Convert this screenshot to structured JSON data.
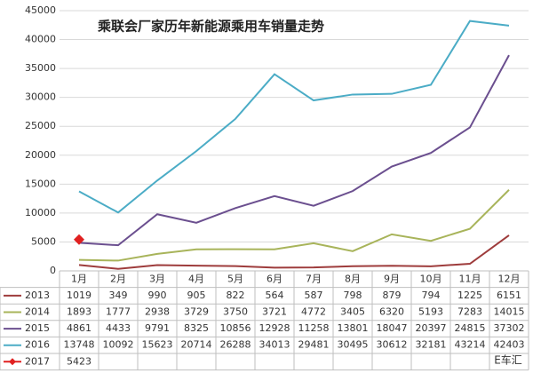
{
  "chart_data": {
    "type": "line",
    "title": "乘联会厂家历年新能源乘用车销量走势",
    "categories": [
      "1月",
      "2月",
      "3月",
      "4月",
      "5月",
      "6月",
      "7月",
      "8月",
      "9月",
      "10月",
      "11月",
      "12月"
    ],
    "series": [
      {
        "name": "2013",
        "color": "#9e3c3c",
        "values": [
          1019,
          349,
          990,
          905,
          822,
          564,
          587,
          798,
          879,
          794,
          1225,
          6151
        ]
      },
      {
        "name": "2014",
        "color": "#a8b45a",
        "values": [
          1893,
          1777,
          2938,
          3729,
          3750,
          3721,
          4772,
          3405,
          6320,
          5193,
          7283,
          14015
        ]
      },
      {
        "name": "2015",
        "color": "#6b4f8f",
        "values": [
          4861,
          4433,
          9791,
          8325,
          10856,
          12928,
          11258,
          13801,
          18047,
          20397,
          24815,
          37302
        ]
      },
      {
        "name": "2016",
        "color": "#4bacc6",
        "values": [
          13748,
          10092,
          15623,
          20714,
          26288,
          34013,
          29481,
          30495,
          30612,
          32181,
          43214,
          42403
        ]
      },
      {
        "name": "2017",
        "color": "#e02020",
        "marker": "diamond",
        "values": [
          5423,
          null,
          null,
          null,
          null,
          null,
          null,
          null,
          null,
          null,
          null,
          null
        ]
      }
    ],
    "ylim": [
      0,
      45000
    ],
    "yticks": [
      0,
      5000,
      10000,
      15000,
      20000,
      25000,
      30000,
      35000,
      40000,
      45000
    ],
    "grid": true,
    "watermark": "E车汇"
  }
}
